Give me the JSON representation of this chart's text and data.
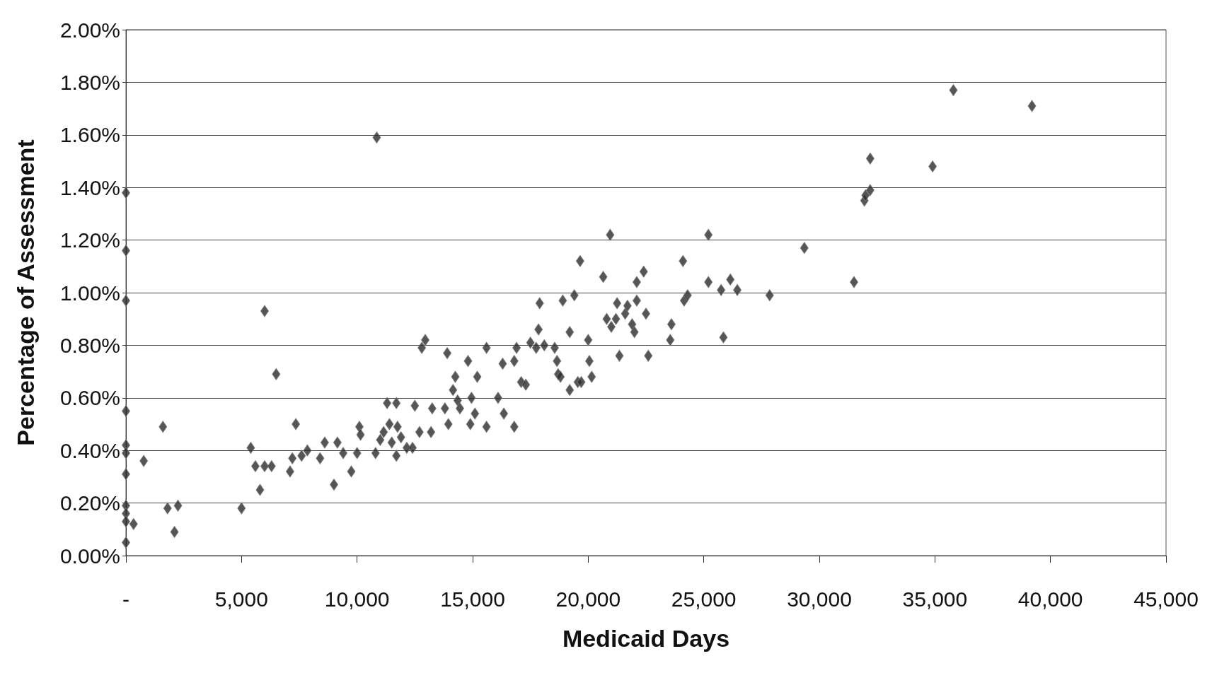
{
  "chart_data": {
    "type": "scatter",
    "xlabel": "Medicaid Days",
    "ylabel": "Percentage of Assessment",
    "x": [
      0,
      0,
      0,
      0,
      0,
      0,
      0,
      0,
      0,
      0,
      0,
      330,
      770,
      1600,
      1800,
      2250,
      2100,
      5000,
      5400,
      5600,
      5800,
      6000,
      6000,
      6300,
      6500,
      7100,
      7200,
      7350,
      7600,
      7850,
      8400,
      8600,
      9000,
      9150,
      9400,
      9750,
      10000,
      10100,
      10150,
      10850,
      10800,
      11000,
      11150,
      11300,
      11400,
      11500,
      11700,
      11750,
      11700,
      11900,
      12150,
      12400,
      12500,
      12700,
      12800,
      12950,
      13200,
      13250,
      13800,
      13900,
      13950,
      14150,
      14250,
      14350,
      14450,
      14800,
      14900,
      14950,
      15100,
      15200,
      15600,
      15600,
      16100,
      16300,
      16350,
      16800,
      16800,
      16900,
      17100,
      17300,
      17500,
      17750,
      17850,
      17900,
      18100,
      18550,
      18650,
      18700,
      18800,
      18900,
      19200,
      19200,
      19400,
      19550,
      19650,
      19700,
      20000,
      20050,
      20150,
      20650,
      20800,
      20950,
      21000,
      21200,
      21250,
      21350,
      21600,
      21700,
      21900,
      22000,
      22100,
      22100,
      22400,
      22500,
      22600,
      23550,
      23600,
      24100,
      24150,
      24300,
      25200,
      25200,
      25750,
      25850,
      26150,
      26450,
      27850,
      29350,
      31500,
      31950,
      32000,
      32200,
      32200,
      34900,
      35800,
      39200
    ],
    "values": [
      1.38,
      1.16,
      0.97,
      0.55,
      0.42,
      0.39,
      0.31,
      0.19,
      0.16,
      0.13,
      0.05,
      0.12,
      0.36,
      0.49,
      0.18,
      0.19,
      0.09,
      0.18,
      0.41,
      0.34,
      0.25,
      0.93,
      0.34,
      0.34,
      0.69,
      0.32,
      0.37,
      0.5,
      0.38,
      0.4,
      0.37,
      0.43,
      0.27,
      0.43,
      0.39,
      0.32,
      0.39,
      0.49,
      0.46,
      1.59,
      0.39,
      0.44,
      0.47,
      0.58,
      0.5,
      0.43,
      0.58,
      0.49,
      0.38,
      0.45,
      0.41,
      0.41,
      0.57,
      0.47,
      0.79,
      0.82,
      0.47,
      0.56,
      0.56,
      0.77,
      0.5,
      0.63,
      0.68,
      0.59,
      0.56,
      0.74,
      0.5,
      0.6,
      0.54,
      0.68,
      0.49,
      0.79,
      0.6,
      0.73,
      0.54,
      0.74,
      0.49,
      0.79,
      0.66,
      0.65,
      0.81,
      0.79,
      0.86,
      0.96,
      0.8,
      0.79,
      0.74,
      0.69,
      0.68,
      0.97,
      0.85,
      0.63,
      0.99,
      0.66,
      1.12,
      0.66,
      0.82,
      0.74,
      0.68,
      1.06,
      0.9,
      1.22,
      0.87,
      0.9,
      0.96,
      0.76,
      0.92,
      0.95,
      0.88,
      0.85,
      0.97,
      1.04,
      1.08,
      0.92,
      0.76,
      0.82,
      0.88,
      1.12,
      0.97,
      0.99,
      1.22,
      1.04,
      1.01,
      0.83,
      1.05,
      1.01,
      0.99,
      1.17,
      1.04,
      1.35,
      1.37,
      1.39,
      1.51,
      1.48,
      1.77,
      1.71
    ],
    "color": "#2b2b2b",
    "marker": "diamond",
    "xlim": [
      0,
      45000
    ],
    "xticks": [
      {
        "value": 0,
        "label": "-"
      },
      {
        "value": 5000,
        "label": "5,000"
      },
      {
        "value": 10000,
        "label": "10,000"
      },
      {
        "value": 15000,
        "label": "15,000"
      },
      {
        "value": 20000,
        "label": "20,000"
      },
      {
        "value": 25000,
        "label": "25,000"
      },
      {
        "value": 30000,
        "label": "30,000"
      },
      {
        "value": 35000,
        "label": "35,000"
      },
      {
        "value": 40000,
        "label": "40,000"
      },
      {
        "value": 45000,
        "label": "45,000"
      }
    ],
    "ylim": [
      0,
      2
    ],
    "yticks": [
      {
        "value": 0,
        "label": "0.00%"
      },
      {
        "value": 0.2,
        "label": "0.20%"
      },
      {
        "value": 0.4,
        "label": "0.40%"
      },
      {
        "value": 0.6,
        "label": "0.60%"
      },
      {
        "value": 0.8,
        "label": "0.80%"
      },
      {
        "value": 1,
        "label": "1.00%"
      },
      {
        "value": 1.2,
        "label": "1.20%"
      },
      {
        "value": 1.4,
        "label": "1.40%"
      },
      {
        "value": 1.6,
        "label": "1.60%"
      },
      {
        "value": 1.8,
        "label": "1.80%"
      },
      {
        "value": 2,
        "label": "2.00%"
      }
    ],
    "grid": "y"
  }
}
